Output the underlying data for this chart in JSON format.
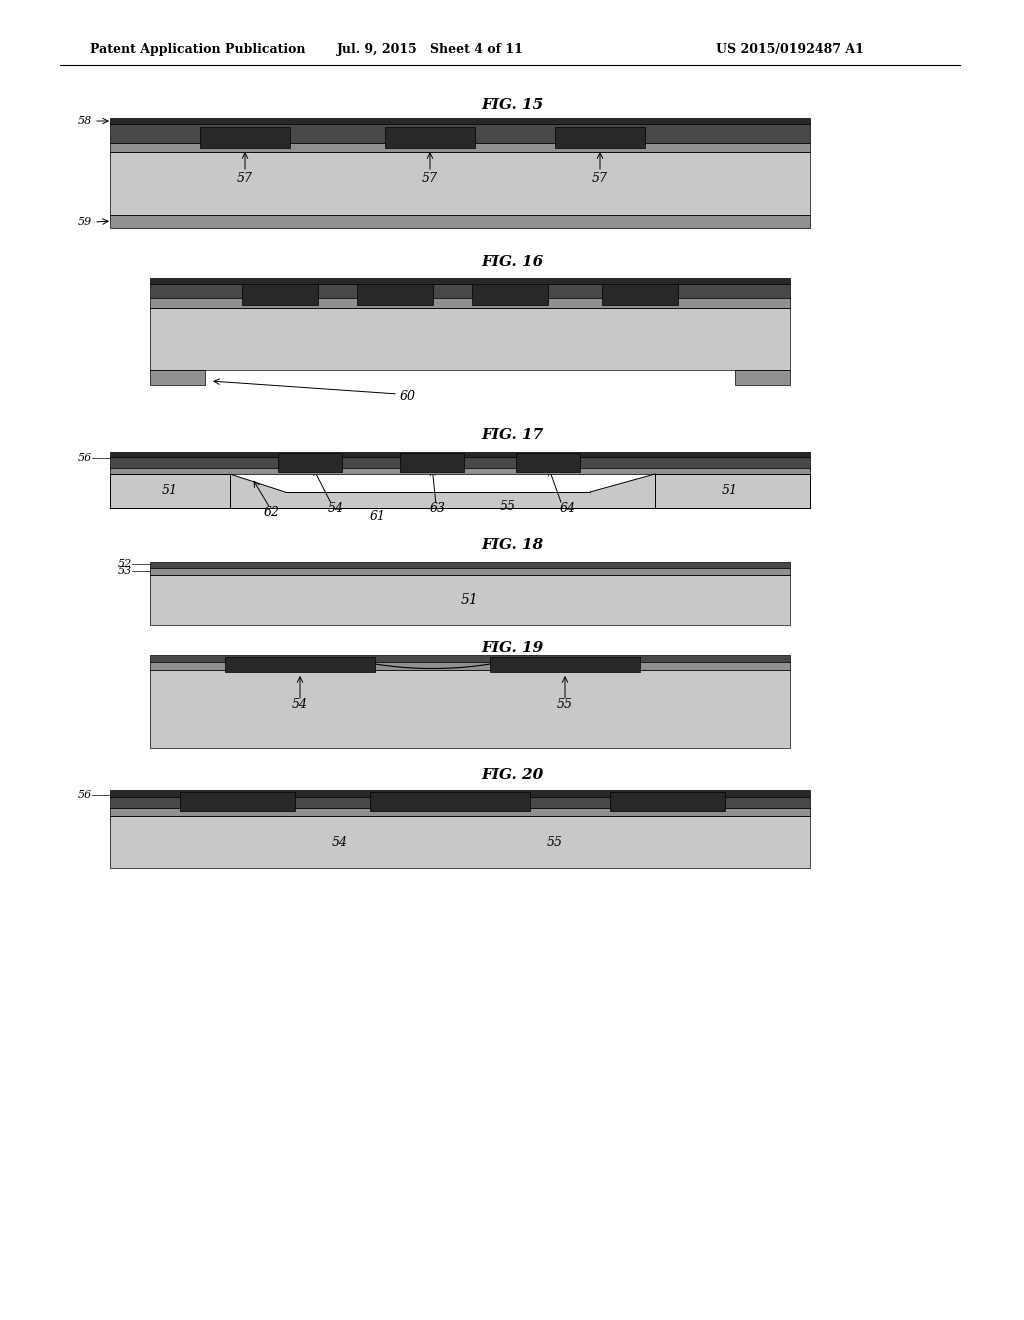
{
  "header_left": "Patent Application Publication",
  "header_mid": "Jul. 9, 2015   Sheet 4 of 11",
  "header_right": "US 2015/0192487 A1",
  "bg_color": "#ffffff",
  "lg": "#c8c8c8",
  "mg": "#909090",
  "dg": "#484848",
  "vdg": "#282828",
  "figures": [
    "FIG. 15",
    "FIG. 16",
    "FIG. 17",
    "FIG. 18",
    "FIG. 19",
    "FIG. 20"
  ]
}
